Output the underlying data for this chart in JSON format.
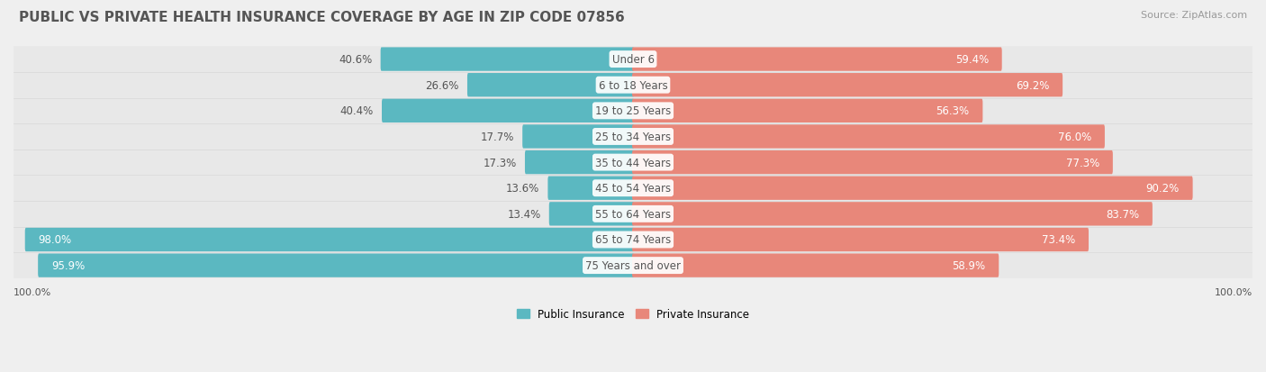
{
  "title": "PUBLIC VS PRIVATE HEALTH INSURANCE COVERAGE BY AGE IN ZIP CODE 07856",
  "source": "Source: ZipAtlas.com",
  "categories": [
    "Under 6",
    "6 to 18 Years",
    "19 to 25 Years",
    "25 to 34 Years",
    "35 to 44 Years",
    "45 to 54 Years",
    "55 to 64 Years",
    "65 to 74 Years",
    "75 Years and over"
  ],
  "public_values": [
    40.6,
    26.6,
    40.4,
    17.7,
    17.3,
    13.6,
    13.4,
    98.0,
    95.9
  ],
  "private_values": [
    59.4,
    69.2,
    56.3,
    76.0,
    77.3,
    90.2,
    83.7,
    73.4,
    58.9
  ],
  "public_color": "#5bb8c1",
  "private_color": "#e8877a",
  "bg_color": "#efefef",
  "row_bg_color": "#e8e8e8",
  "title_color": "#555555",
  "source_color": "#999999",
  "max_value": 100.0,
  "bar_height": 0.62,
  "title_fontsize": 11,
  "source_fontsize": 8,
  "label_fontsize": 8.5,
  "category_fontsize": 8.5,
  "legend_fontsize": 8.5,
  "axis_label_fontsize": 8
}
